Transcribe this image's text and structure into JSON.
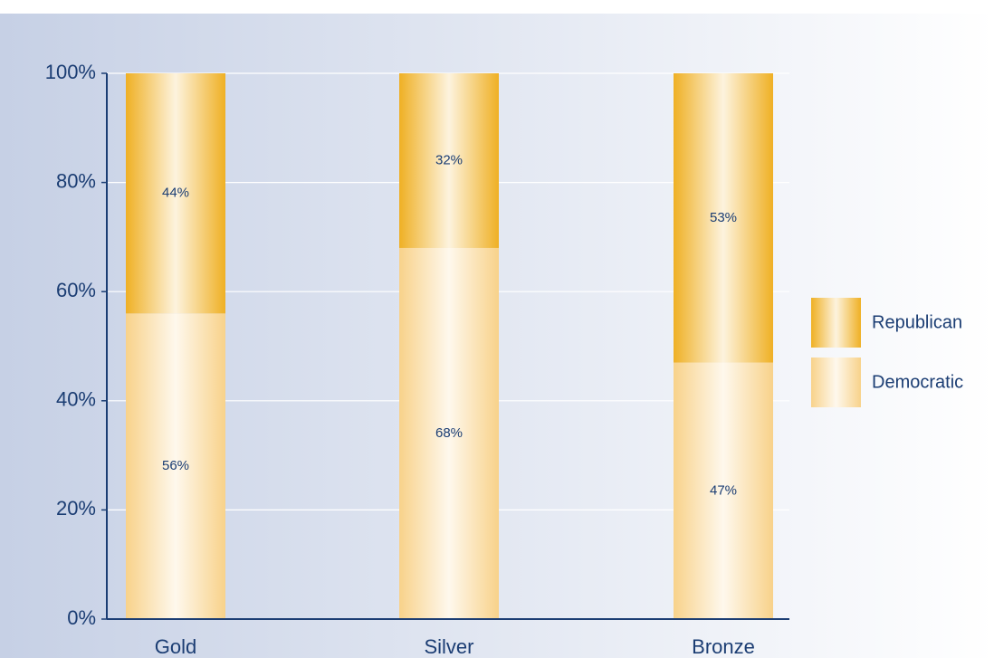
{
  "chart_data": {
    "type": "stacked_bar",
    "categories": [
      "Gold",
      "Silver",
      "Bronze"
    ],
    "series": [
      {
        "name": "Democratic",
        "color": "#f8d28a",
        "values": [
          56,
          68,
          47
        ],
        "value_labels": [
          "56%",
          "68%",
          "47%"
        ]
      },
      {
        "name": "Republican",
        "color": "#efb024",
        "values": [
          44,
          32,
          53
        ],
        "value_labels": [
          "44%",
          "32%",
          "53%"
        ]
      }
    ],
    "ylim": [
      0,
      100
    ],
    "yticks": [
      {
        "value": 0,
        "label": "0%"
      },
      {
        "value": 20,
        "label": "20%"
      },
      {
        "value": 40,
        "label": "40%"
      },
      {
        "value": 60,
        "label": "60%"
      },
      {
        "value": 80,
        "label": "80%"
      },
      {
        "value": 100,
        "label": "100%"
      }
    ],
    "grid": true,
    "legend": "right"
  }
}
